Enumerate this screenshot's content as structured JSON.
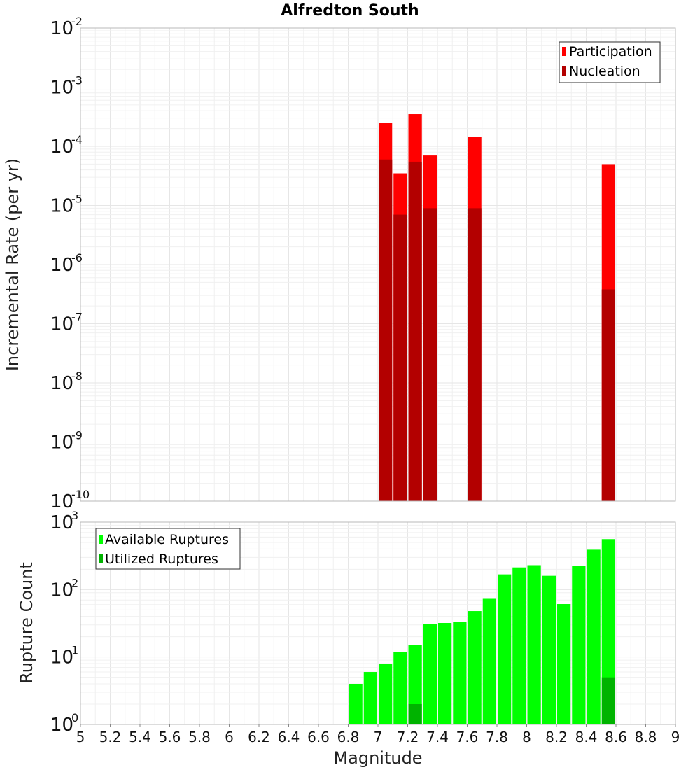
{
  "chart_data": [
    {
      "type": "bar",
      "title": "Alfredton South",
      "ylabel": "Incremental Rate (per yr)",
      "xlabel": "",
      "yscale": "log",
      "ylim_exponents": [
        -10,
        -2
      ],
      "xlim": [
        5,
        9
      ],
      "bar_width": 0.1,
      "legend_position": "top-right",
      "series": [
        {
          "name": "Participation",
          "color": "#ff0000",
          "x": [
            7.05,
            7.15,
            7.25,
            7.35,
            7.65,
            8.55
          ],
          "values": [
            0.00025,
            3.5e-05,
            0.00035,
            7e-05,
            0.000145,
            5e-05
          ]
        },
        {
          "name": "Nucleation",
          "color": "#b30000",
          "x": [
            7.05,
            7.15,
            7.25,
            7.35,
            7.65,
            8.55
          ],
          "values": [
            6e-05,
            7e-06,
            5.5e-05,
            9e-06,
            9e-06,
            3.8e-07
          ]
        }
      ]
    },
    {
      "type": "bar",
      "title": "",
      "ylabel": "Rupture Count",
      "xlabel": "Magnitude",
      "yscale": "log",
      "ylim_exponents": [
        0,
        3
      ],
      "xlim": [
        5,
        9
      ],
      "bar_width": 0.1,
      "legend_position": "top-left",
      "series": [
        {
          "name": "Available Ruptures",
          "color": "#00ff00",
          "x": [
            6.45,
            6.65,
            6.85,
            6.95,
            7.05,
            7.15,
            7.25,
            7.35,
            7.45,
            7.55,
            7.65,
            7.75,
            7.85,
            7.95,
            8.05,
            8.15,
            8.25,
            8.35,
            8.45,
            8.55
          ],
          "values": [
            1,
            1,
            4,
            6,
            8,
            12,
            15,
            31,
            32,
            33,
            48,
            73,
            168,
            213,
            230,
            160,
            61,
            225,
            390,
            560
          ]
        },
        {
          "name": "Utilized Ruptures",
          "color": "#00b300",
          "x": [
            7.05,
            7.15,
            7.25,
            7.35,
            7.65,
            8.55
          ],
          "values": [
            1,
            1,
            2,
            1,
            1,
            5
          ]
        }
      ]
    }
  ],
  "x_ticks": [
    "5",
    "5.2",
    "5.4",
    "5.6",
    "5.8",
    "6",
    "6.2",
    "6.4",
    "6.6",
    "6.8",
    "7",
    "7.2",
    "7.4",
    "7.6",
    "7.8",
    "8",
    "8.2",
    "8.4",
    "8.6",
    "8.8",
    "9"
  ],
  "top_y_ticks": [
    {
      "base": "10",
      "exp": "-2"
    },
    {
      "base": "10",
      "exp": "-3"
    },
    {
      "base": "10",
      "exp": "-4"
    },
    {
      "base": "10",
      "exp": "-5"
    },
    {
      "base": "10",
      "exp": "-6"
    },
    {
      "base": "10",
      "exp": "-7"
    },
    {
      "base": "10",
      "exp": "-8"
    },
    {
      "base": "10",
      "exp": "-9"
    },
    {
      "base": "10",
      "exp": "-10"
    }
  ],
  "bottom_y_ticks": [
    {
      "base": "10",
      "exp": "3"
    },
    {
      "base": "10",
      "exp": "2"
    },
    {
      "base": "10",
      "exp": "1"
    },
    {
      "base": "10",
      "exp": "0"
    }
  ]
}
